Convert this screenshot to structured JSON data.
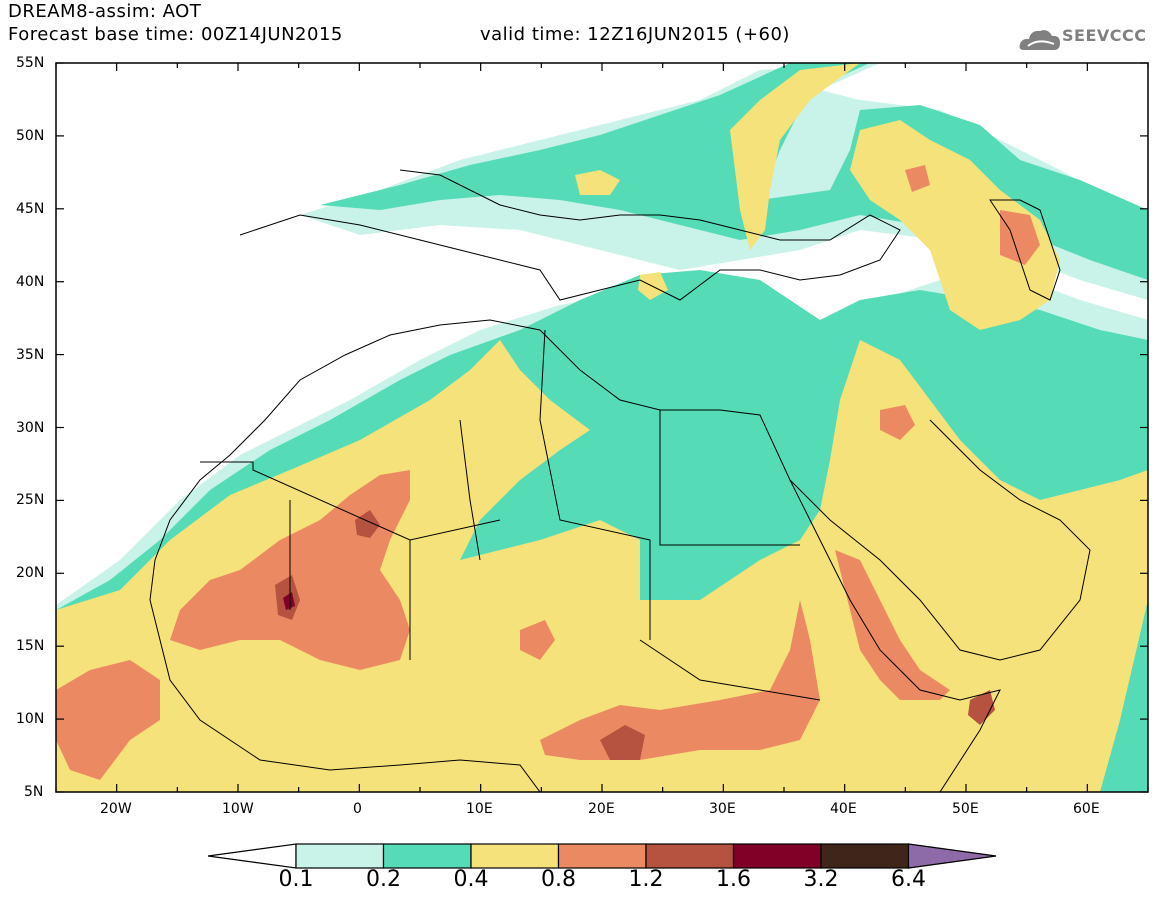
{
  "header": {
    "title": "DREAM8-assim: AOT",
    "base_time": "Forecast base time: 00Z14JUN2015",
    "valid_time": "valid time: 12Z16JUN2015 (+60)",
    "logo_text": "SEEVCCC"
  },
  "map": {
    "lon_range": [
      -25,
      65
    ],
    "lat_range": [
      5,
      55
    ],
    "lat_labels": [
      "55N",
      "50N",
      "45N",
      "40N",
      "35N",
      "30N",
      "25N",
      "20N",
      "15N",
      "10N",
      "5N"
    ],
    "lon_labels": [
      "20W",
      "10W",
      "0",
      "10E",
      "20E",
      "30E",
      "40E",
      "50E",
      "60E"
    ],
    "ocean_color": "#ffffff",
    "coastline_color": "#000000"
  },
  "legend": {
    "levels": [
      "0.1",
      "0.2",
      "0.4",
      "0.8",
      "1.2",
      "1.6",
      "3.2",
      "6.4"
    ],
    "colors": {
      "below_0.1": "#ffffff",
      "0.1-0.2": "#c9f2e8",
      "0.2-0.4": "#55dbb5",
      "0.4-0.8": "#f6e27a",
      "0.8-1.2": "#eb8a62",
      "1.2-1.6": "#b55240",
      "1.6-3.2": "#800028",
      "3.2-6.4": "#40261a",
      "above_6.4": "#8f6aa8"
    }
  }
}
